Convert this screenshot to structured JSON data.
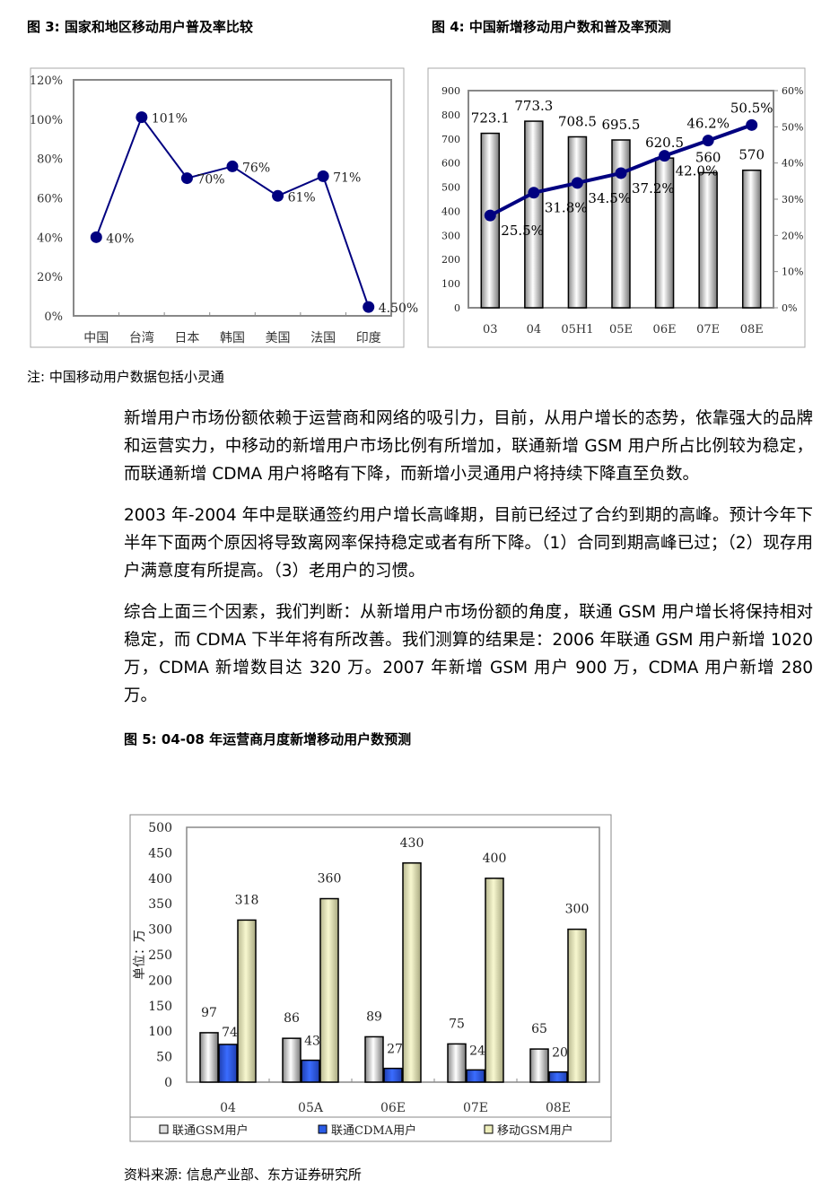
{
  "captions": {
    "fig3": "图 3:  国家和地区移动用户普及率比较",
    "fig4": "图 4:  中国新增移动用户数和普及率预测",
    "fig5": "图 5:  04-08 年运营商月度新增移动用户数预测"
  },
  "note": "注:  中国移动用户数据包括小灵通",
  "source": "资料来源:  信息产业部、东方证券研究所",
  "paragraphs": [
    "新增用户市场份额依赖于运营商和网络的吸引力，目前，从用户增长的态势，依靠强大的品牌和运营实力，中移动的新增用户市场比例有所增加，联通新增 GSM 用户所占比例较为稳定，而联通新增 CDMA 用户将略有下降，而新增小灵通用户将持续下降直至负数。",
    "2003 年-2004 年中是联通签约用户增长高峰期，目前已经过了合约到期的高峰。预计今年下半年下面两个原因将导致离网率保持稳定或者有所下降。（1）合同到期高峰已过；（2）现存用户满意度有所提高。（3）老用户的习惯。",
    "综合上面三个因素，我们判断：从新增用户市场份额的角度，联通 GSM 用户增长将保持相对稳定，而 CDMA 下半年将有所改善。我们测算的结果是：2006 年联通 GSM 用户新增 1020 万，CDMA 新增数目达 320 万。2007 年新增 GSM 用户 900 万，CDMA 用户新增 280 万。"
  ],
  "chart_data": [
    {
      "type": "line",
      "categories": [
        "中国",
        "台湾",
        "日本",
        "韩国",
        "美国",
        "法国",
        "印度"
      ],
      "values": [
        40,
        101,
        70,
        76,
        61,
        71,
        4.5
      ],
      "data_labels": [
        "40%",
        "101%",
        "70%",
        "76%",
        "61%",
        "71%",
        "4.50%"
      ],
      "ylim": [
        0,
        120
      ],
      "yticks": [
        "0%",
        "20%",
        "40%",
        "60%",
        "80%",
        "100%",
        "120%"
      ],
      "color": "#000080"
    },
    {
      "type": "bar+line",
      "categories": [
        "03",
        "04",
        "05H1",
        "05E",
        "06E",
        "07E",
        "08E"
      ],
      "bars": [
        723.1,
        773.3,
        708.5,
        695.5,
        620.5,
        560,
        570
      ],
      "bar_labels": [
        "723.1",
        "773.3",
        "708.5",
        "695.5",
        "620.5",
        "560",
        "570"
      ],
      "line": [
        25.5,
        31.8,
        34.5,
        37.2,
        42.0,
        46.2,
        50.5
      ],
      "line_labels": [
        "25.5%",
        "31.8%",
        "34.5%",
        "37.2%",
        "42.0%",
        "46.2%",
        "50.5%"
      ],
      "ylim": [
        0,
        900
      ],
      "y2lim": [
        0,
        60
      ],
      "yticks": [
        "0",
        "100",
        "200",
        "300",
        "400",
        "500",
        "600",
        "700",
        "800",
        "900"
      ],
      "y2ticks": [
        "0%",
        "10%",
        "20%",
        "30%",
        "40%",
        "50%",
        "60%"
      ],
      "line_color": "#000080"
    },
    {
      "type": "bar",
      "categories": [
        "04",
        "05A",
        "06E",
        "07E",
        "08E"
      ],
      "ylabel": "单位：万",
      "ylim": [
        0,
        500
      ],
      "yticks": [
        "0",
        "50",
        "100",
        "150",
        "200",
        "250",
        "300",
        "350",
        "400",
        "450",
        "500"
      ],
      "legend": "bottom",
      "series": [
        {
          "name": "联通GSM用户",
          "values": [
            97,
            86,
            89,
            75,
            65
          ],
          "color": "#e0e0e0"
        },
        {
          "name": "联通CDMA用户",
          "values": [
            74,
            43,
            27,
            24,
            20
          ],
          "color": "#2b5ce6"
        },
        {
          "name": "移动GSM用户",
          "values": [
            318,
            360,
            430,
            400,
            300
          ],
          "color": "#eeeebb"
        }
      ]
    }
  ]
}
